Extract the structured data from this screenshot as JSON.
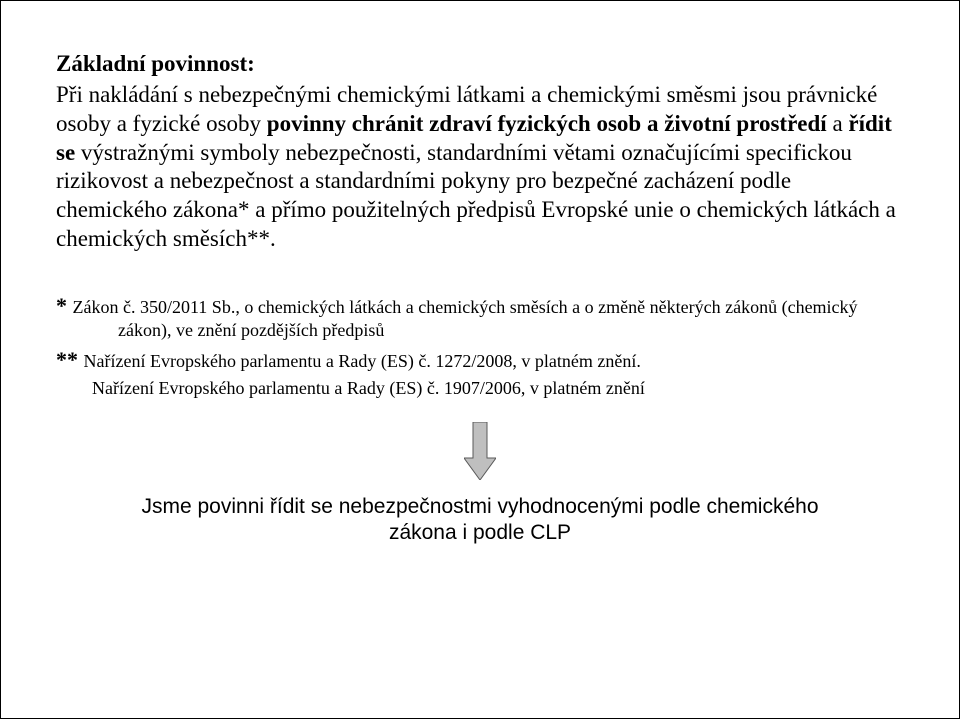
{
  "heading": "Základní povinnost:",
  "para_prefix": "Při nakládání s nebezpečnými chemickými látkami a chemickými směsmi jsou právnické osoby a fyzické osoby ",
  "para_bold1": "povinny chránit zdraví fyzických osob a životní prostředí",
  "para_mid": " a ",
  "para_bold2": "řídit se",
  "para_suffix": " výstražnými symboly nebezpečnosti, standardními větami označujícími specifickou rizikovost a nebezpečnost a standardními pokyny pro bezpečné zacházení podle chemického zákona* a přímo použitelných předpisů Evropské unie o chemických látkách a chemických směsích**.",
  "note1_star": "* ",
  "note1_text": "Zákon č. 350/2011 Sb., o chemických látkách a chemických směsích a o změně některých zákonů (chemický zákon), ve znění pozdějších předpisů",
  "note2_star": "** ",
  "note2_text": "Nařízení Evropského parlamentu a Rady (ES) č. 1272/2008, v platném znění.",
  "note3_text": "Nařízení Evropského parlamentu a Rady (ES) č. 1907/2006, v platném znění",
  "closing": "Jsme povinni řídit se nebezpečnostmi vyhodnocenými podle chemického zákona i podle CLP",
  "arrow": {
    "fill": "#bfbfbf",
    "stroke": "#595959",
    "width": 32,
    "height": 58
  }
}
